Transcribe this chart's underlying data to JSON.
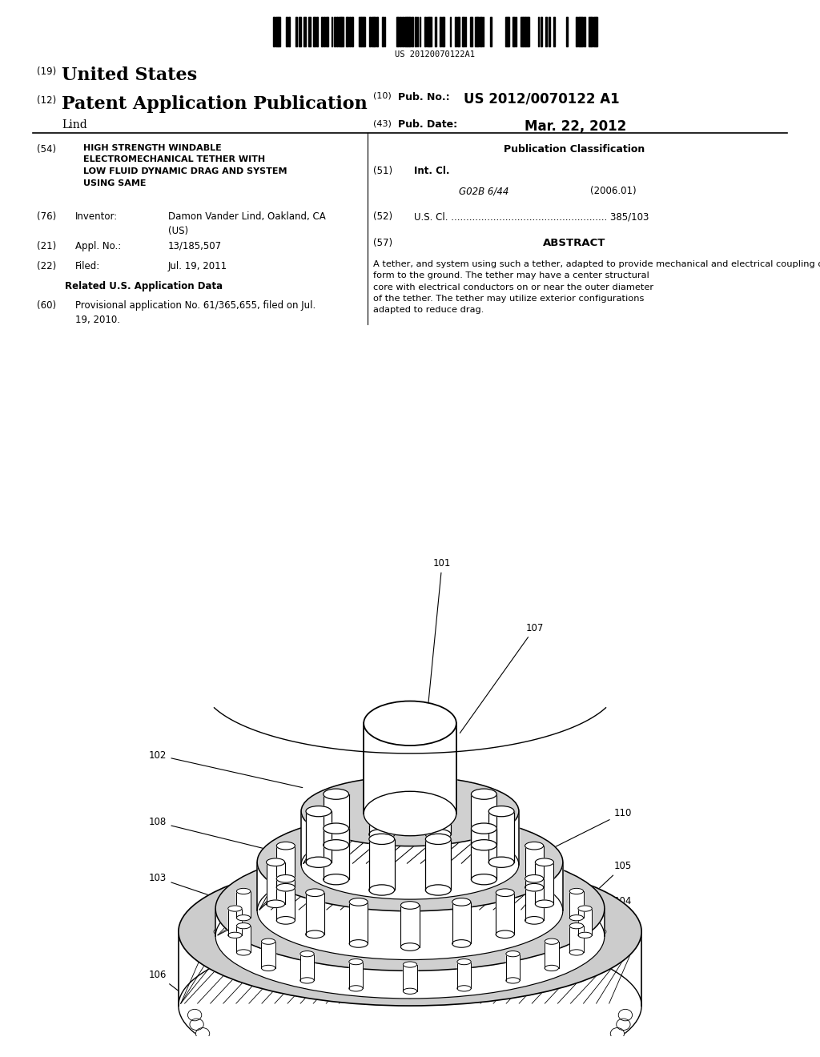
{
  "background_color": "#ffffff",
  "barcode_text": "US 20120070122A1",
  "line1_num": "(19)",
  "line1_text": "United States",
  "line2_num": "(12)",
  "line2_text": "Patent Application Publication",
  "line2_right_num": "(10)",
  "line2_right_label": "Pub. No.:",
  "line2_right_val": "US 2012/0070122 A1",
  "line3_left": "Lind",
  "line3_right_num": "(43)",
  "line3_right_label": "Pub. Date:",
  "line3_right_val": "Mar. 22, 2012",
  "field54_num": "(54)",
  "field54_label": "HIGH STRENGTH WINDABLE\nELECTROMECHANICAL TETHER WITH\nLOW FLUID DYNAMIC DRAG AND SYSTEM\nUSING SAME",
  "pub_class_label": "Publication Classification",
  "field51_num": "(51)",
  "field51_label": "Int. Cl.",
  "field51_val1": "G02B 6/44",
  "field51_val2": "(2006.01)",
  "field52_num": "(52)",
  "field52_label": "U.S. Cl. .................................................... 385/103",
  "field57_num": "(57)",
  "field57_label": "ABSTRACT",
  "abstract_text": "A tether, and system using such a tether, adapted to provide mechanical and electrical coupling of an airborne flying plat-\nform to the ground. The tether may have a center structural\ncore with electrical conductors on or near the outer diameter\nof the tether. The tether may utilize exterior configurations\nadapted to reduce drag.",
  "field76_num": "(76)",
  "field76_label": "Inventor:",
  "field76_val": "Damon Vander Lind, Oakland, CA\n(US)",
  "field21_num": "(21)",
  "field21_label": "Appl. No.:",
  "field21_val": "13/185,507",
  "field22_num": "(22)",
  "field22_label": "Filed:",
  "field22_val": "Jul. 19, 2011",
  "related_label": "Related U.S. Application Data",
  "field60_num": "(60)",
  "field60_val": "Provisional application No. 61/365,655, filed on Jul.\n19, 2010."
}
